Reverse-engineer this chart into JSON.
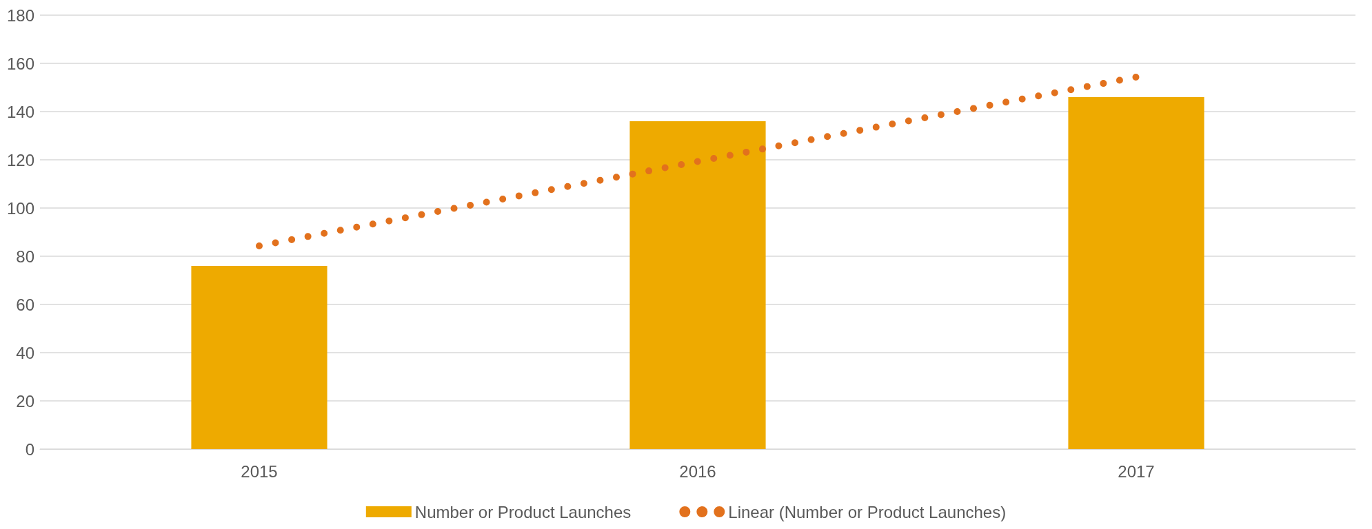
{
  "chart_data": {
    "type": "bar",
    "categories": [
      "2015",
      "2016",
      "2017"
    ],
    "series": [
      {
        "name": "Number or Product Launches",
        "color": "#eeaa00",
        "values": [
          76,
          136,
          146
        ]
      },
      {
        "name": "Linear (Number or Product Launches)",
        "type": "line",
        "color": "#e2711d",
        "values": [
          84.3,
          119.3,
          154.3
        ],
        "line_style": "dotted"
      }
    ],
    "ylim": [
      0,
      180
    ],
    "yticks": [
      0,
      20,
      40,
      60,
      80,
      100,
      120,
      140,
      160,
      180
    ],
    "grid": "y",
    "legend": "bottom"
  }
}
